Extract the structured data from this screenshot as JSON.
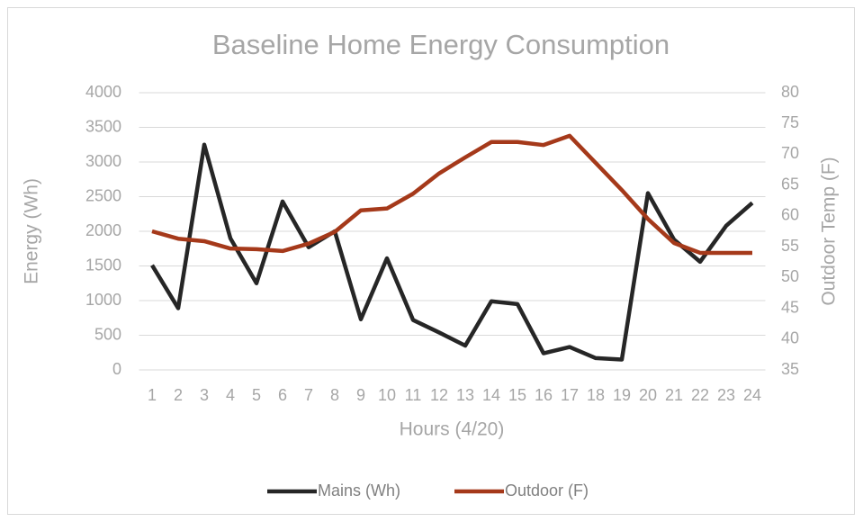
{
  "chart_data": {
    "type": "line",
    "title": "Baseline Home Energy Consumption",
    "xlabel": "Hours (4/20)",
    "ylabel": "Energy (Wh)",
    "y2label": "Outdoor Temp (F)",
    "categories": [
      "1",
      "2",
      "3",
      "4",
      "5",
      "6",
      "7",
      "8",
      "9",
      "10",
      "11",
      "12",
      "13",
      "14",
      "15",
      "16",
      "17",
      "18",
      "19",
      "20",
      "21",
      "22",
      "23",
      "24"
    ],
    "series": [
      {
        "name": "Mains (Wh)",
        "color": "#262626",
        "axis": "y",
        "values": [
          1510,
          890,
          3250,
          1900,
          1250,
          2430,
          1770,
          2000,
          730,
          1610,
          720,
          540,
          350,
          990,
          950,
          240,
          330,
          170,
          150,
          2550,
          1880,
          1560,
          2080,
          2410
        ]
      },
      {
        "name": "Outdoor (F)",
        "color": "#a5391a",
        "axis": "y2",
        "values": [
          57.5,
          56.3,
          55.9,
          54.7,
          54.6,
          54.3,
          55.5,
          57.4,
          60.9,
          61.2,
          63.6,
          66.9,
          69.5,
          72,
          72,
          71.5,
          73,
          68.6,
          64.2,
          59.5,
          55.6,
          54,
          54,
          54
        ]
      }
    ],
    "ylim": [
      0,
      4000
    ],
    "yticks": [
      0,
      500,
      1000,
      1500,
      2000,
      2500,
      3000,
      3500,
      4000
    ],
    "y2lim": [
      35,
      80
    ],
    "y2ticks": [
      35,
      40,
      45,
      50,
      55,
      60,
      65,
      70,
      75,
      80
    ],
    "grid": true,
    "legend": "bottom"
  }
}
